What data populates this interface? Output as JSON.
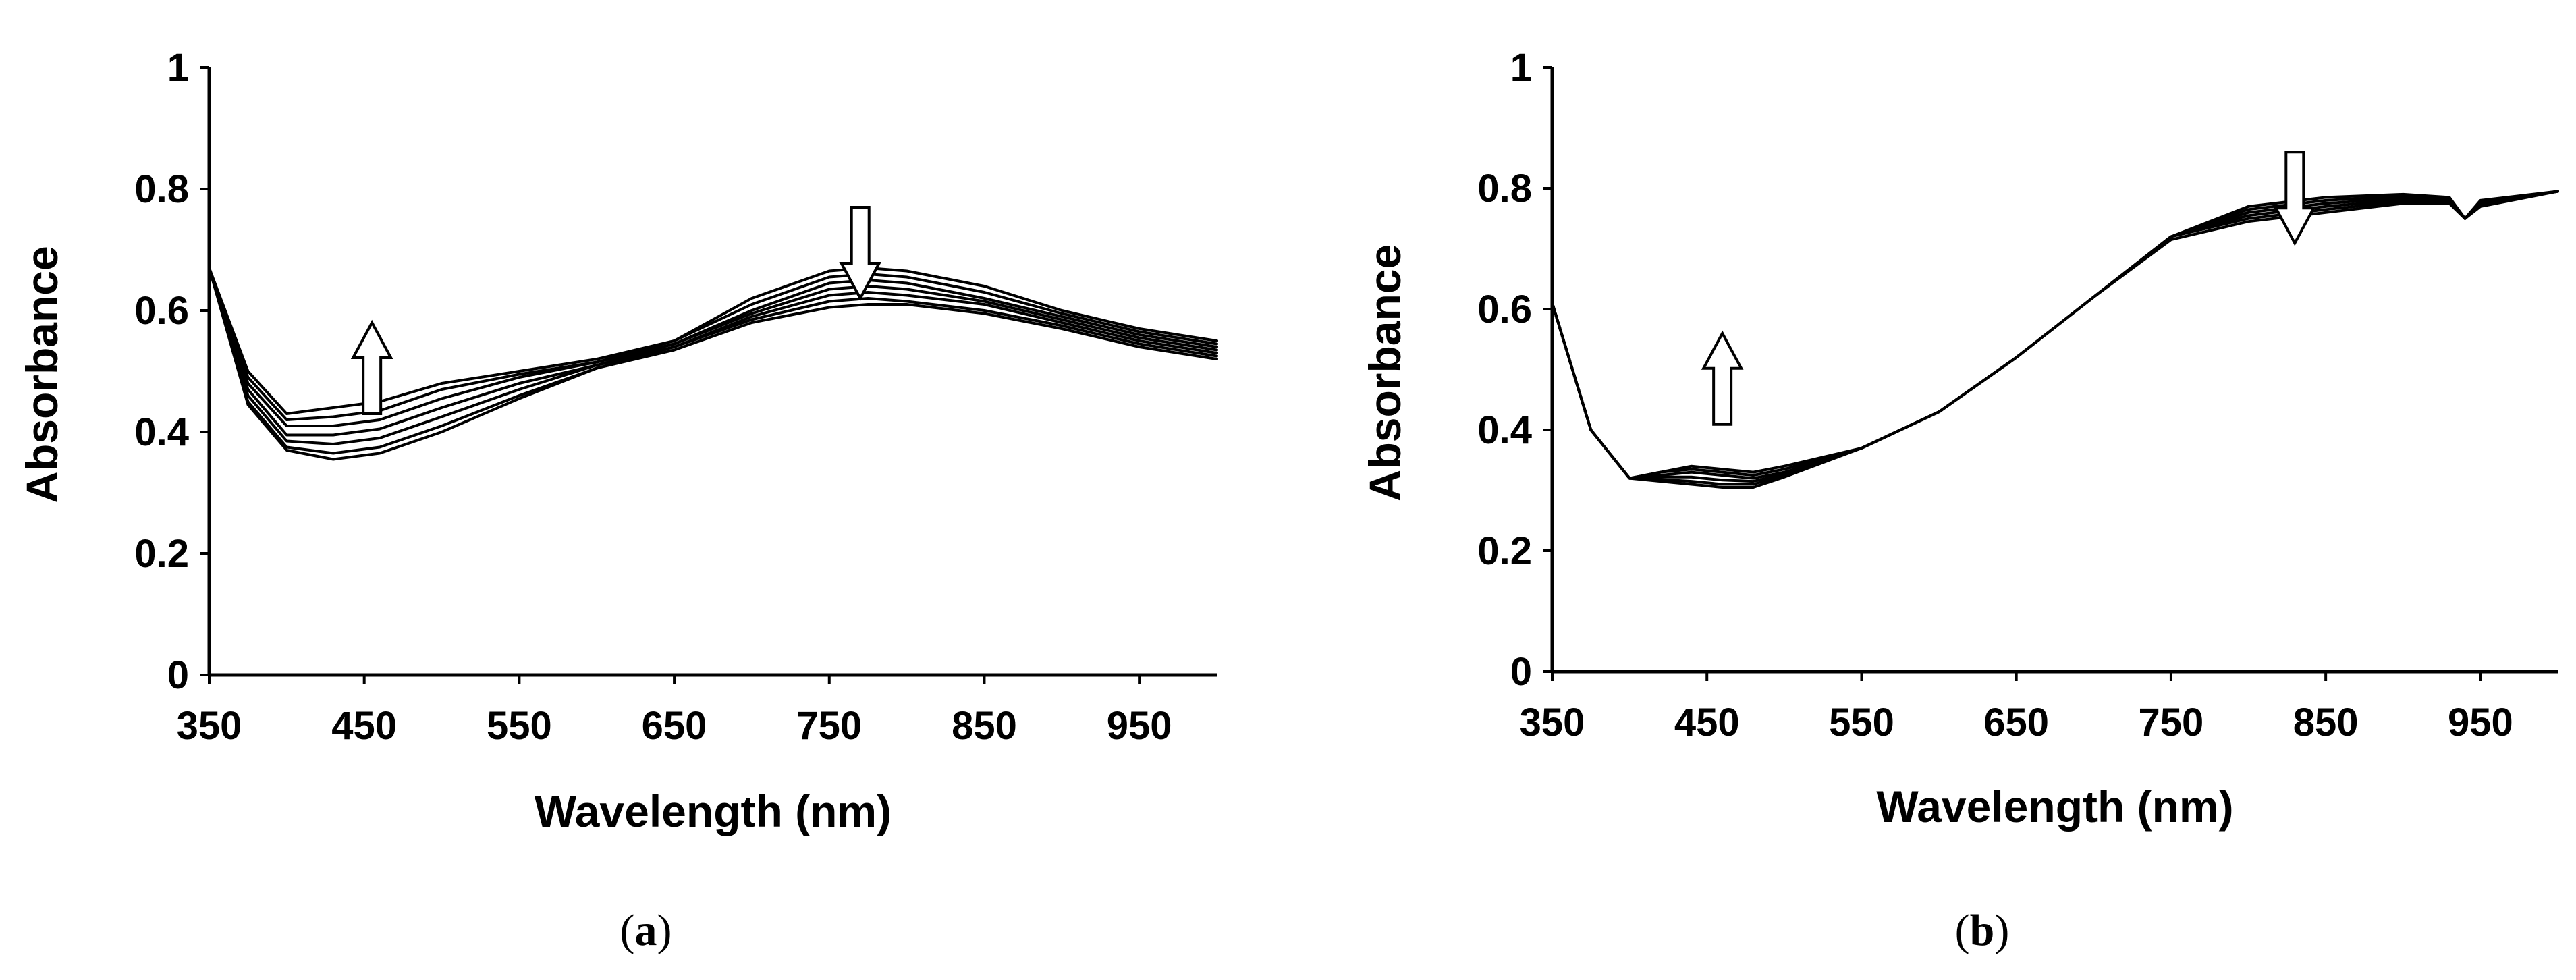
{
  "chart_data": [
    {
      "type": "line",
      "panel_label": "(a)",
      "caption": {
        "open": "(",
        "letter": "a",
        "close": ")"
      },
      "xlabel": "Wavelength (nm)",
      "ylabel": "Absorbance",
      "xlim": [
        350,
        1000
      ],
      "ylim": [
        0,
        1
      ],
      "x_ticks": [
        350,
        450,
        550,
        650,
        750,
        850,
        950
      ],
      "y_ticks": [
        0,
        0.2,
        0.4,
        0.6,
        0.8,
        1
      ],
      "y_tick_labels": [
        "0",
        "0.2",
        "0.4",
        "0.6",
        "0.8",
        "1"
      ],
      "grid": false,
      "legend": "none",
      "line_color": "#000000",
      "arrows": [
        {
          "direction": "up",
          "x": 455,
          "y": 0.58
        },
        {
          "direction": "down",
          "x": 770,
          "y": 0.77
        }
      ],
      "x": [
        350,
        375,
        400,
        430,
        460,
        500,
        550,
        600,
        650,
        700,
        750,
        775,
        800,
        850,
        900,
        950,
        1000
      ],
      "series": [
        {
          "values": [
            0.67,
            0.5,
            0.43,
            0.44,
            0.45,
            0.48,
            0.5,
            0.52,
            0.55,
            0.62,
            0.665,
            0.67,
            0.665,
            0.64,
            0.6,
            0.57,
            0.55
          ]
        },
        {
          "values": [
            0.67,
            0.49,
            0.42,
            0.425,
            0.435,
            0.47,
            0.495,
            0.515,
            0.55,
            0.61,
            0.655,
            0.66,
            0.655,
            0.63,
            0.595,
            0.565,
            0.545
          ]
        },
        {
          "values": [
            0.67,
            0.48,
            0.41,
            0.41,
            0.42,
            0.455,
            0.49,
            0.515,
            0.545,
            0.6,
            0.645,
            0.65,
            0.645,
            0.62,
            0.59,
            0.56,
            0.54
          ]
        },
        {
          "values": [
            0.67,
            0.47,
            0.395,
            0.395,
            0.405,
            0.44,
            0.48,
            0.51,
            0.545,
            0.595,
            0.635,
            0.64,
            0.635,
            0.615,
            0.585,
            0.555,
            0.535
          ]
        },
        {
          "values": [
            0.67,
            0.46,
            0.385,
            0.38,
            0.39,
            0.425,
            0.47,
            0.51,
            0.54,
            0.59,
            0.625,
            0.63,
            0.625,
            0.61,
            0.58,
            0.55,
            0.53
          ]
        },
        {
          "values": [
            0.67,
            0.45,
            0.375,
            0.365,
            0.375,
            0.41,
            0.46,
            0.505,
            0.54,
            0.585,
            0.615,
            0.62,
            0.615,
            0.6,
            0.575,
            0.545,
            0.525
          ]
        },
        {
          "values": [
            0.67,
            0.445,
            0.37,
            0.355,
            0.365,
            0.4,
            0.455,
            0.505,
            0.535,
            0.58,
            0.605,
            0.61,
            0.61,
            0.595,
            0.57,
            0.54,
            0.52
          ]
        }
      ]
    },
    {
      "type": "line",
      "panel_label": "(b)",
      "caption": {
        "open": "(",
        "letter": "b",
        "close": ")"
      },
      "xlabel": "Wavelength (nm)",
      "ylabel": "Absorbance",
      "xlim": [
        350,
        1000
      ],
      "ylim": [
        0,
        1
      ],
      "x_ticks": [
        350,
        450,
        550,
        650,
        750,
        850,
        950
      ],
      "y_ticks": [
        0,
        0.2,
        0.4,
        0.6,
        0.8,
        1
      ],
      "y_tick_labels": [
        "0",
        "0.2",
        "0.4",
        "0.6",
        "0.8",
        "1"
      ],
      "grid": false,
      "legend": "none",
      "line_color": "#000000",
      "arrows": [
        {
          "direction": "up",
          "x": 460,
          "y": 0.56
        },
        {
          "direction": "down",
          "x": 830,
          "y": 0.86
        }
      ],
      "x": [
        350,
        375,
        400,
        420,
        440,
        460,
        480,
        500,
        550,
        600,
        650,
        700,
        750,
        800,
        850,
        900,
        930,
        940,
        950,
        1000
      ],
      "series": [
        {
          "values": [
            0.61,
            0.4,
            0.32,
            0.33,
            0.34,
            0.335,
            0.33,
            0.34,
            0.37,
            0.43,
            0.52,
            0.62,
            0.72,
            0.77,
            0.785,
            0.79,
            0.785,
            0.75,
            0.78,
            0.795
          ]
        },
        {
          "values": [
            0.61,
            0.4,
            0.32,
            0.33,
            0.335,
            0.33,
            0.325,
            0.335,
            0.37,
            0.43,
            0.52,
            0.62,
            0.72,
            0.765,
            0.78,
            0.787,
            0.783,
            0.75,
            0.778,
            0.795
          ]
        },
        {
          "values": [
            0.61,
            0.4,
            0.32,
            0.325,
            0.33,
            0.325,
            0.32,
            0.33,
            0.37,
            0.43,
            0.52,
            0.62,
            0.72,
            0.76,
            0.775,
            0.784,
            0.781,
            0.75,
            0.776,
            0.795
          ]
        },
        {
          "values": [
            0.61,
            0.4,
            0.32,
            0.322,
            0.322,
            0.317,
            0.315,
            0.327,
            0.37,
            0.43,
            0.52,
            0.62,
            0.72,
            0.755,
            0.77,
            0.781,
            0.779,
            0.75,
            0.774,
            0.795
          ]
        },
        {
          "values": [
            0.61,
            0.4,
            0.32,
            0.318,
            0.315,
            0.31,
            0.31,
            0.325,
            0.37,
            0.43,
            0.52,
            0.62,
            0.72,
            0.75,
            0.765,
            0.778,
            0.777,
            0.75,
            0.772,
            0.795
          ]
        },
        {
          "values": [
            0.61,
            0.4,
            0.32,
            0.315,
            0.31,
            0.305,
            0.305,
            0.322,
            0.37,
            0.43,
            0.52,
            0.62,
            0.715,
            0.745,
            0.76,
            0.775,
            0.775,
            0.75,
            0.77,
            0.795
          ]
        }
      ]
    }
  ]
}
